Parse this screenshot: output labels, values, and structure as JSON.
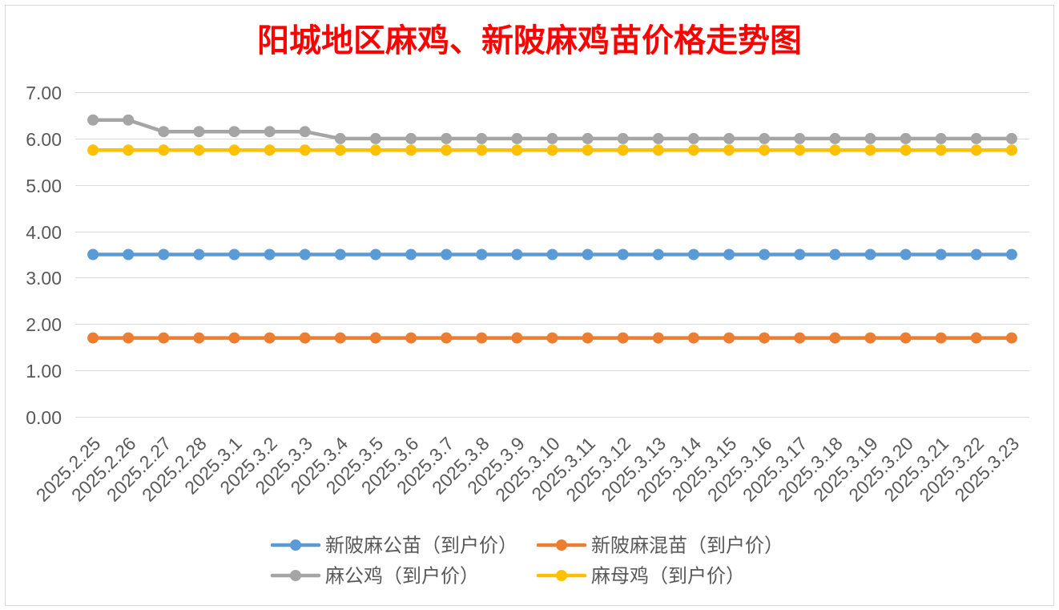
{
  "chart_data": {
    "type": "line",
    "title": "阳城地区麻鸡、新陂麻鸡苗价格走势图",
    "title_color": "#FF0000",
    "categories": [
      "2025.2.25",
      "2025.2.26",
      "2025.2.27",
      "2025.2.28",
      "2025.3.1",
      "2025.3.2",
      "2025.3.3",
      "2025.3.4",
      "2025.3.5",
      "2025.3.6",
      "2025.3.7",
      "2025.3.8",
      "2025.3.9",
      "2025.3.10",
      "2025.3.11",
      "2025.3.12",
      "2025.3.13",
      "2025.3.14",
      "2025.3.15",
      "2025.3.16",
      "2025.3.17",
      "2025.3.18",
      "2025.3.19",
      "2025.3.20",
      "2025.3.21",
      "2025.3.22",
      "2025.3.23"
    ],
    "ylim": [
      0,
      7
    ],
    "y_tick_labels": [
      "0.00",
      "1.00",
      "2.00",
      "3.00",
      "4.00",
      "5.00",
      "6.00",
      "7.00"
    ],
    "grid": true,
    "legend_position": "bottom",
    "series": [
      {
        "name": "新陂麻公苗（到户价）",
        "color": "#5B9BD5",
        "values": [
          3.5,
          3.5,
          3.5,
          3.5,
          3.5,
          3.5,
          3.5,
          3.5,
          3.5,
          3.5,
          3.5,
          3.5,
          3.5,
          3.5,
          3.5,
          3.5,
          3.5,
          3.5,
          3.5,
          3.5,
          3.5,
          3.5,
          3.5,
          3.5,
          3.5,
          3.5,
          3.5
        ]
      },
      {
        "name": "新陂麻混苗（到户价）",
        "color": "#ED7D31",
        "values": [
          1.7,
          1.7,
          1.7,
          1.7,
          1.7,
          1.7,
          1.7,
          1.7,
          1.7,
          1.7,
          1.7,
          1.7,
          1.7,
          1.7,
          1.7,
          1.7,
          1.7,
          1.7,
          1.7,
          1.7,
          1.7,
          1.7,
          1.7,
          1.7,
          1.7,
          1.7,
          1.7
        ]
      },
      {
        "name": "麻公鸡（到户价）",
        "color": "#A5A5A5",
        "values": [
          6.4,
          6.4,
          6.15,
          6.15,
          6.15,
          6.15,
          6.15,
          6,
          6,
          6,
          6,
          6,
          6,
          6,
          6,
          6,
          6,
          6,
          6,
          6,
          6,
          6,
          6,
          6,
          6,
          6,
          6
        ]
      },
      {
        "name": "麻母鸡（到户价）",
        "color": "#FFC000",
        "values": [
          5.75,
          5.75,
          5.75,
          5.75,
          5.75,
          5.75,
          5.75,
          5.75,
          5.75,
          5.75,
          5.75,
          5.75,
          5.75,
          5.75,
          5.75,
          5.75,
          5.75,
          5.75,
          5.75,
          5.75,
          5.75,
          5.75,
          5.75,
          5.75,
          5.75,
          5.75,
          5.75
        ]
      }
    ]
  }
}
